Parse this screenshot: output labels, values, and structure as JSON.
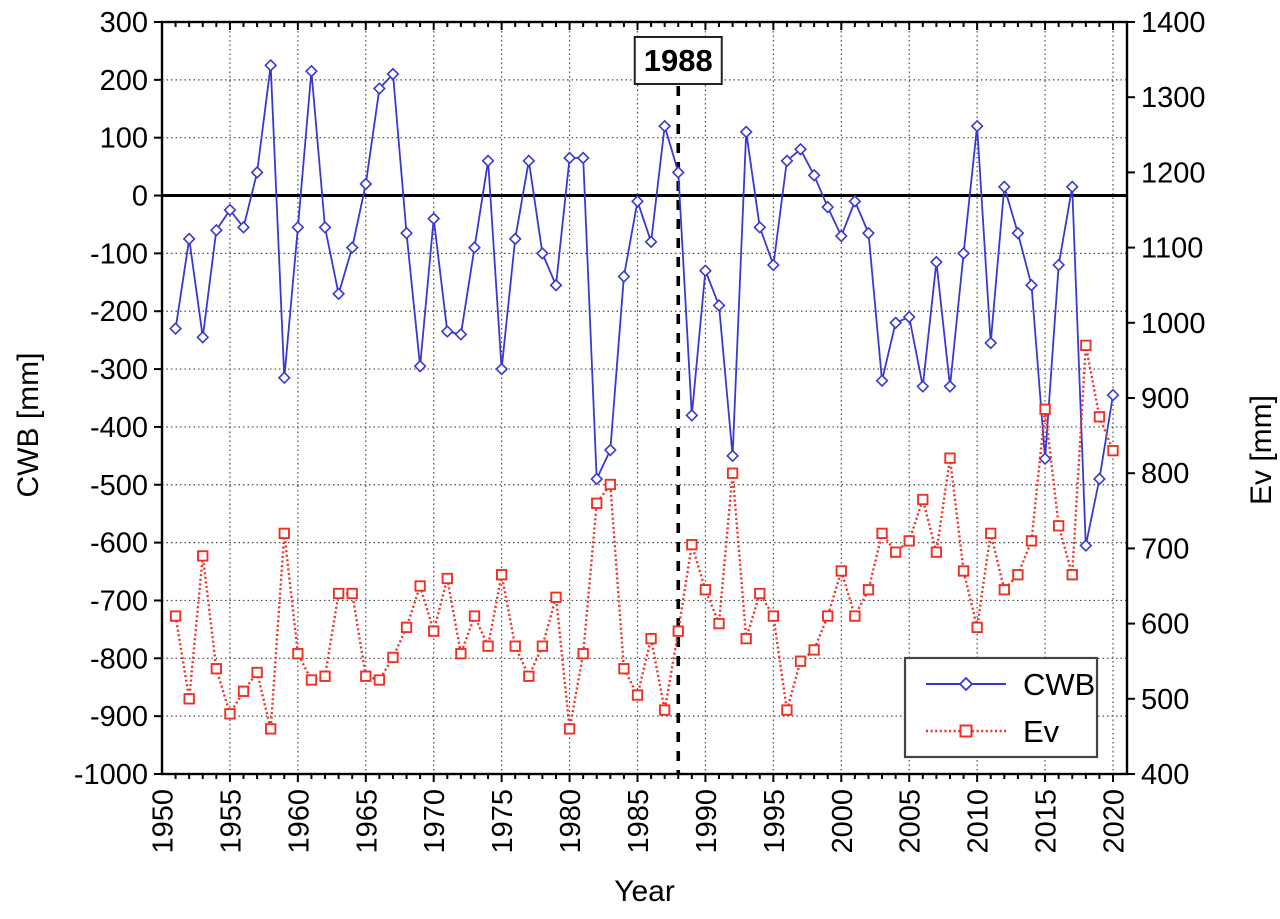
{
  "figure": {
    "description": "Dual-axis time series chart of climatic water balance (CWB) and evaporation (Ev), 1951-2020, with a dashed vertical reference line labelled 1988"
  },
  "chart_data": {
    "type": "line",
    "title": "",
    "xlabel": "Year",
    "ylabel_left": "CWB [mm]",
    "ylabel_right": "Ev [mm]",
    "grid": "dotted",
    "legend_position": "bottom-right",
    "x_axis": {
      "label": "Year",
      "min": 1950,
      "max": 2021.1,
      "major_tick_step": 5,
      "minor_tick_step": 1,
      "tick_labels": [
        "1950",
        "1955",
        "1960",
        "1965",
        "1970",
        "1975",
        "1980",
        "1985",
        "1990",
        "1995",
        "2000",
        "2005",
        "2010",
        "2015",
        "2020"
      ]
    },
    "left_axis": {
      "label": "CWB [mm]",
      "min": -1000,
      "max": 300,
      "ticks": [
        300,
        200,
        100,
        0,
        -100,
        -200,
        -300,
        -400,
        -500,
        -600,
        -700,
        -800,
        -900,
        -1000
      ],
      "zero_line": true
    },
    "right_axis": {
      "label": "Ev [mm]",
      "min": 400,
      "max": 1400,
      "ticks": [
        1400,
        1300,
        1200,
        1100,
        1000,
        900,
        800,
        700,
        600,
        500,
        400
      ]
    },
    "annotation": {
      "text": "1988",
      "year": 1988,
      "style": "dashed-vertical-line-with-box"
    },
    "colors": {
      "cwb": "#3939cf",
      "ev": "#ee3124",
      "grid": "#4a4a4a",
      "axis": "#000000",
      "background": "#ffffff"
    },
    "years": [
      1951,
      1952,
      1953,
      1954,
      1955,
      1956,
      1957,
      1958,
      1959,
      1960,
      1961,
      1962,
      1963,
      1964,
      1965,
      1966,
      1967,
      1968,
      1969,
      1970,
      1971,
      1972,
      1973,
      1974,
      1975,
      1976,
      1977,
      1978,
      1979,
      1980,
      1981,
      1982,
      1983,
      1984,
      1985,
      1986,
      1987,
      1988,
      1989,
      1990,
      1991,
      1992,
      1993,
      1994,
      1995,
      1996,
      1997,
      1998,
      1999,
      2000,
      2001,
      2002,
      2003,
      2004,
      2005,
      2006,
      2007,
      2008,
      2009,
      2010,
      2011,
      2012,
      2013,
      2014,
      2015,
      2016,
      2017,
      2018,
      2019,
      2020
    ],
    "series": [
      {
        "name": "CWB",
        "axis": "left",
        "color": "#3939cf",
        "line": "solid",
        "marker": "diamond",
        "values": [
          -230,
          -75,
          -245,
          -60,
          -25,
          -55,
          40,
          225,
          -315,
          -55,
          215,
          -55,
          -170,
          -90,
          20,
          185,
          210,
          -65,
          -295,
          -40,
          -235,
          -240,
          -90,
          60,
          -300,
          -75,
          60,
          -100,
          -155,
          65,
          65,
          -490,
          -440,
          -140,
          -10,
          -80,
          120,
          40,
          -380,
          -130,
          -190,
          -450,
          110,
          -55,
          -120,
          60,
          80,
          35,
          -20,
          -70,
          -10,
          -65,
          -320,
          -220,
          -210,
          -330,
          -115,
          -330,
          -100,
          120,
          -255,
          15,
          -65,
          -155,
          -455,
          -120,
          15,
          -605,
          -490,
          -345
        ]
      },
      {
        "name": "Ev",
        "axis": "right",
        "color": "#ee3124",
        "line": "dotted",
        "marker": "square",
        "values": [
          610,
          500,
          690,
          540,
          480,
          510,
          535,
          460,
          720,
          560,
          525,
          530,
          640,
          640,
          530,
          525,
          555,
          595,
          650,
          590,
          660,
          560,
          610,
          570,
          665,
          570,
          530,
          570,
          635,
          460,
          560,
          760,
          785,
          540,
          505,
          580,
          485,
          590,
          705,
          645,
          600,
          800,
          580,
          640,
          610,
          485,
          550,
          565,
          610,
          670,
          610,
          645,
          720,
          695,
          710,
          765,
          695,
          820,
          670,
          595,
          720,
          645,
          665,
          710,
          885,
          730,
          665,
          970,
          875,
          830
        ]
      }
    ],
    "legend": {
      "entries": [
        {
          "label": "CWB",
          "color": "#3939cf",
          "line": "solid",
          "marker": "diamond"
        },
        {
          "label": "Ev",
          "color": "#ee3124",
          "line": "dotted",
          "marker": "square"
        }
      ]
    }
  }
}
